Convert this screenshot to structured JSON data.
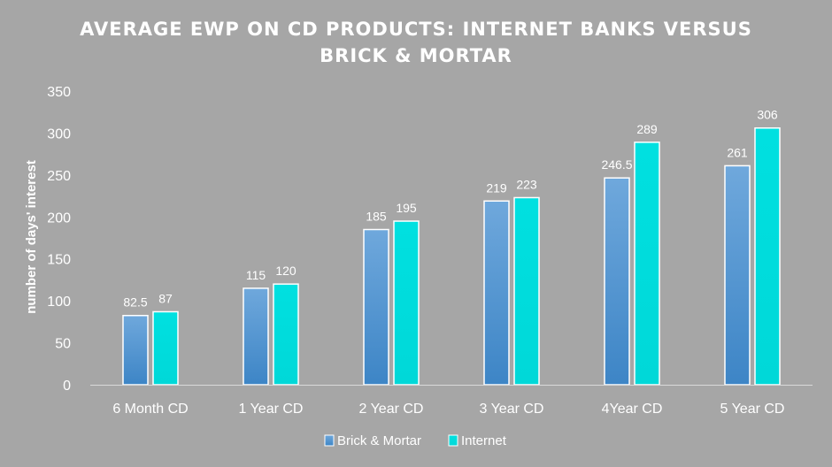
{
  "chart_data": {
    "type": "bar",
    "title_lines": [
      "AVERAGE EWP ON CD PRODUCTS: INTERNET BANKS VERSUS",
      "BRICK & MORTAR"
    ],
    "ylabel": "number of days' interest",
    "xlabel": "",
    "ylim": [
      0,
      350
    ],
    "yticks": [
      0,
      50,
      100,
      150,
      200,
      250,
      300,
      350
    ],
    "categories": [
      "6 Month CD",
      "1 Year CD",
      "2 Year CD",
      "3 Year CD",
      "4Year CD",
      "5 Year CD"
    ],
    "series": [
      {
        "name": "Brick & Mortar",
        "values": [
          82.5,
          115,
          185,
          219,
          246.5,
          261
        ],
        "labels": [
          "82.5",
          "115",
          "185",
          "219",
          "246.5",
          "261"
        ],
        "color_top": "#6fa8dc",
        "color_bottom": "#3d85c6"
      },
      {
        "name": "Internet",
        "values": [
          87,
          120,
          195,
          223,
          289,
          306
        ],
        "labels": [
          "87",
          "120",
          "195",
          "223",
          "289",
          "306"
        ],
        "color_top": "#00e0e0",
        "color_bottom": "#00d8d8"
      }
    ],
    "grid": false,
    "legend_position": "bottom"
  }
}
